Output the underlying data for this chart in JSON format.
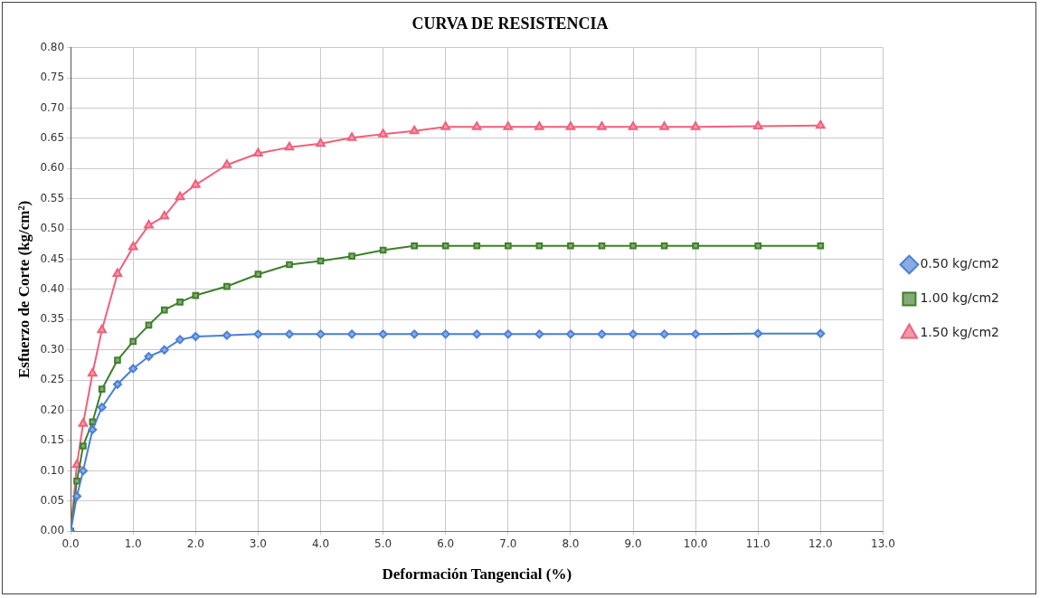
{
  "chart_data": {
    "type": "line",
    "title": "CURVA DE RESISTENCIA",
    "xlabel": "Deformación Tangencial (%)",
    "ylabel": "Esfuerzo de Corte (kg/cm²)",
    "x": [
      0,
      0.1,
      0.2,
      0.35,
      0.5,
      0.75,
      1,
      1.25,
      1.5,
      1.75,
      2,
      2.5,
      3,
      3.5,
      4,
      4.5,
      5,
      5.5,
      6,
      6.5,
      7,
      7.5,
      8,
      8.5,
      9,
      9.5,
      10,
      11,
      12
    ],
    "series": [
      {
        "name": "0.50 kg/cm2",
        "color": "#4a7fd4",
        "marker": "diamond",
        "values": [
          0,
          0.058,
          0.1,
          0.168,
          0.205,
          0.243,
          0.269,
          0.289,
          0.3,
          0.317,
          0.322,
          0.324,
          0.326,
          0.326,
          0.326,
          0.326,
          0.326,
          0.326,
          0.326,
          0.326,
          0.326,
          0.326,
          0.326,
          0.326,
          0.326,
          0.326,
          0.326,
          0.327,
          0.327
        ]
      },
      {
        "name": "1.00 kg/cm2",
        "color": "#3f7f2a",
        "marker": "square",
        "values": [
          0,
          0.083,
          0.141,
          0.181,
          0.235,
          0.283,
          0.314,
          0.341,
          0.366,
          0.379,
          0.39,
          0.405,
          0.425,
          0.441,
          0.447,
          0.455,
          0.465,
          0.472,
          0.472,
          0.472,
          0.472,
          0.472,
          0.472,
          0.472,
          0.472,
          0.472,
          0.472,
          0.472,
          0.472
        ]
      },
      {
        "name": "1.50 kg/cm2",
        "color": "#f0607a",
        "marker": "triangle",
        "values": [
          0,
          0.11,
          0.178,
          0.261,
          0.333,
          0.426,
          0.47,
          0.506,
          0.521,
          0.553,
          0.573,
          0.606,
          0.625,
          0.635,
          0.641,
          0.651,
          0.657,
          0.662,
          0.669,
          0.669,
          0.669,
          0.669,
          0.669,
          0.669,
          0.669,
          0.669,
          0.669,
          0.67,
          0.671
        ]
      }
    ],
    "xlim": [
      0,
      13
    ],
    "xticks": [
      {
        "value": 0,
        "label": "0.0"
      },
      {
        "value": 1,
        "label": "1.0"
      },
      {
        "value": 2,
        "label": "2.0"
      },
      {
        "value": 3,
        "label": "3.0"
      },
      {
        "value": 4,
        "label": "4.0"
      },
      {
        "value": 5,
        "label": "5.0"
      },
      {
        "value": 6,
        "label": "6.0"
      },
      {
        "value": 7,
        "label": "7.0"
      },
      {
        "value": 8,
        "label": "8.0"
      },
      {
        "value": 9,
        "label": "9.0"
      },
      {
        "value": 10,
        "label": "10.0"
      },
      {
        "value": 11,
        "label": "11.0"
      },
      {
        "value": 12,
        "label": "12.0"
      },
      {
        "value": 13,
        "label": "13.0"
      }
    ],
    "ylim": [
      0,
      0.8
    ],
    "yticks": [
      {
        "value": 0,
        "label": "0.00"
      },
      {
        "value": 0.05,
        "label": "0.05"
      },
      {
        "value": 0.1,
        "label": "0.10"
      },
      {
        "value": 0.15,
        "label": "0.15"
      },
      {
        "value": 0.2,
        "label": "0.20"
      },
      {
        "value": 0.25,
        "label": "0.25"
      },
      {
        "value": 0.3,
        "label": "0.30"
      },
      {
        "value": 0.35,
        "label": "0.35"
      },
      {
        "value": 0.4,
        "label": "0.40"
      },
      {
        "value": 0.45,
        "label": "0.45"
      },
      {
        "value": 0.5,
        "label": "0.50"
      },
      {
        "value": 0.55,
        "label": "0.55"
      },
      {
        "value": 0.6,
        "label": "0.60"
      },
      {
        "value": 0.65,
        "label": "0.65"
      },
      {
        "value": 0.7,
        "label": "0.70"
      },
      {
        "value": 0.75,
        "label": "0.75"
      },
      {
        "value": 0.8,
        "label": "0.80"
      }
    ],
    "grid": true,
    "legend": "right",
    "line_style": "solid"
  }
}
